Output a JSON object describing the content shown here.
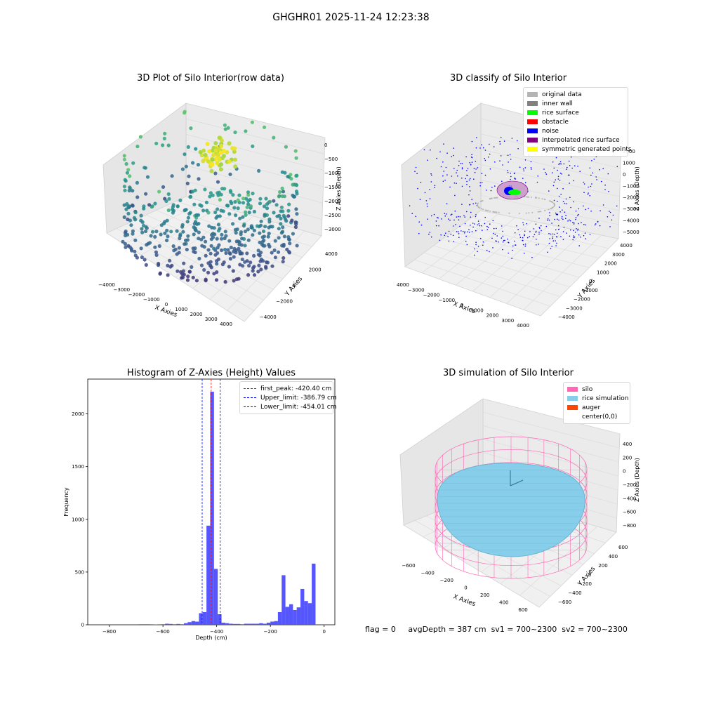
{
  "suptitle": "GHGHR01 2025-11-24 12:23:38",
  "status": {
    "flag": "flag = 0",
    "avg": "avgDepth = 387 cm",
    "sv1": "sv1 = 700~2300",
    "sv2": "sv2 = 700~2300"
  },
  "chart_data": [
    {
      "type": "scatter3d",
      "title": "3D Plot of Silo Interior(row data)",
      "xlabel": "X Axies",
      "ylabel": "Y Axies",
      "zlabel": "Z Axies (Depth)",
      "xticks": [
        "−4000",
        "−3000",
        "−2000",
        "−1000",
        "0",
        "1000",
        "2000",
        "3000",
        "4000"
      ],
      "yticks": [
        "−4000",
        "−2000",
        "0",
        "2000",
        "4000"
      ],
      "zticks": [
        "0",
        "−500",
        "−1000",
        "−1500",
        "−2000",
        "−2500",
        "−3000"
      ],
      "colormap": "viridis"
    },
    {
      "type": "scatter3d",
      "title": "3D classify of Silo Interior",
      "xlabel": "X Axies",
      "ylabel": "Y Axies",
      "zlabel": "Z Axies (Depth)",
      "xticks": [
        "−4000",
        "−3000",
        "−2000",
        "−1000",
        "0",
        "1000",
        "2000",
        "3000",
        "4000"
      ],
      "yticks": [
        "−4000",
        "−3000",
        "−2000",
        "−1000",
        "0",
        "1000",
        "2000",
        "3000",
        "4000"
      ],
      "zticks": [
        "2000",
        "1000",
        "0",
        "−1000",
        "−2000",
        "−3000",
        "−4000",
        "−5000"
      ],
      "legend": [
        {
          "name": "original data",
          "color": "#b4b4b4"
        },
        {
          "name": "inner wall",
          "color": "#808080"
        },
        {
          "name": "rice surface",
          "color": "#00ff00"
        },
        {
          "name": "obstacle",
          "color": "#ff0000"
        },
        {
          "name": "noise",
          "color": "#0000ff"
        },
        {
          "name": "interpolated rice surface",
          "color": "#800080"
        },
        {
          "name": "symmetric generated points",
          "color": "#ffff00"
        }
      ]
    },
    {
      "type": "bar",
      "title": "Histogram of Z-Axies (Height) Values",
      "xlabel": "Depth (cm)",
      "ylabel": "Frequency",
      "xlim": [
        -880,
        40
      ],
      "ylim": [
        0,
        2330
      ],
      "xticks": [
        -800,
        -600,
        -400,
        -200,
        0
      ],
      "yticks": [
        0,
        500,
        1000,
        1500,
        2000
      ],
      "xtick_labels": [
        "−800",
        "−600",
        "−400",
        "−200",
        "0"
      ],
      "ytick_labels": [
        "0",
        "500",
        "1000",
        "1500",
        "2000"
      ],
      "bin_width": 14,
      "bar_color": "#4d4dff",
      "bins": [
        [
          -690,
          5
        ],
        [
          -676,
          5
        ],
        [
          -662,
          5
        ],
        [
          -634,
          3
        ],
        [
          -606,
          5
        ],
        [
          -592,
          10
        ],
        [
          -578,
          8
        ],
        [
          -564,
          5
        ],
        [
          -550,
          8
        ],
        [
          -536,
          5
        ],
        [
          -522,
          15
        ],
        [
          -508,
          25
        ],
        [
          -494,
          35
        ],
        [
          -480,
          30
        ],
        [
          -466,
          110
        ],
        [
          -452,
          120
        ],
        [
          -438,
          940
        ],
        [
          -424,
          2210
        ],
        [
          -410,
          530
        ],
        [
          -396,
          100
        ],
        [
          -382,
          20
        ],
        [
          -368,
          15
        ],
        [
          -354,
          10
        ],
        [
          -340,
          8
        ],
        [
          -326,
          8
        ],
        [
          -312,
          5
        ],
        [
          -298,
          10
        ],
        [
          -284,
          10
        ],
        [
          -270,
          10
        ],
        [
          -256,
          10
        ],
        [
          -242,
          15
        ],
        [
          -228,
          10
        ],
        [
          -214,
          20
        ],
        [
          -200,
          30
        ],
        [
          -186,
          35
        ],
        [
          -172,
          120
        ],
        [
          -158,
          470
        ],
        [
          -144,
          170
        ],
        [
          -130,
          195
        ],
        [
          -116,
          140
        ],
        [
          -102,
          165
        ],
        [
          -88,
          340
        ],
        [
          -74,
          225
        ],
        [
          -60,
          205
        ],
        [
          -46,
          580
        ]
      ],
      "lines": [
        {
          "label": "first_peak: -420.40 cm",
          "x": -420.4,
          "color": "#ff0000"
        },
        {
          "label": "Upper_limit: -386.79 cm",
          "x": -386.79,
          "color": "#0000ff"
        },
        {
          "label": "Lower_limit: -454.01 cm",
          "x": -454.01,
          "color": "#0000ff"
        }
      ]
    },
    {
      "type": "surface3d",
      "title": "3D simulation of Silo Interior",
      "xlabel": "X Axies",
      "ylabel": "Y Axies",
      "zlabel": "Z Axies (Depth)",
      "xticks": [
        "−600",
        "−400",
        "−200",
        "0",
        "200",
        "400",
        "600"
      ],
      "yticks": [
        "−600",
        "−400",
        "−200",
        "0",
        "200",
        "400",
        "600"
      ],
      "zticks": [
        "400",
        "200",
        "0",
        "−200",
        "−400",
        "−600",
        "−800"
      ],
      "legend": [
        {
          "name": "silo",
          "color": "#ff69b4"
        },
        {
          "name": "rice simulation",
          "color": "#87ceeb"
        },
        {
          "name": "auger",
          "color": "#ff4500"
        },
        {
          "name": "center(0,0)",
          "color": "#ffffff"
        }
      ]
    }
  ]
}
